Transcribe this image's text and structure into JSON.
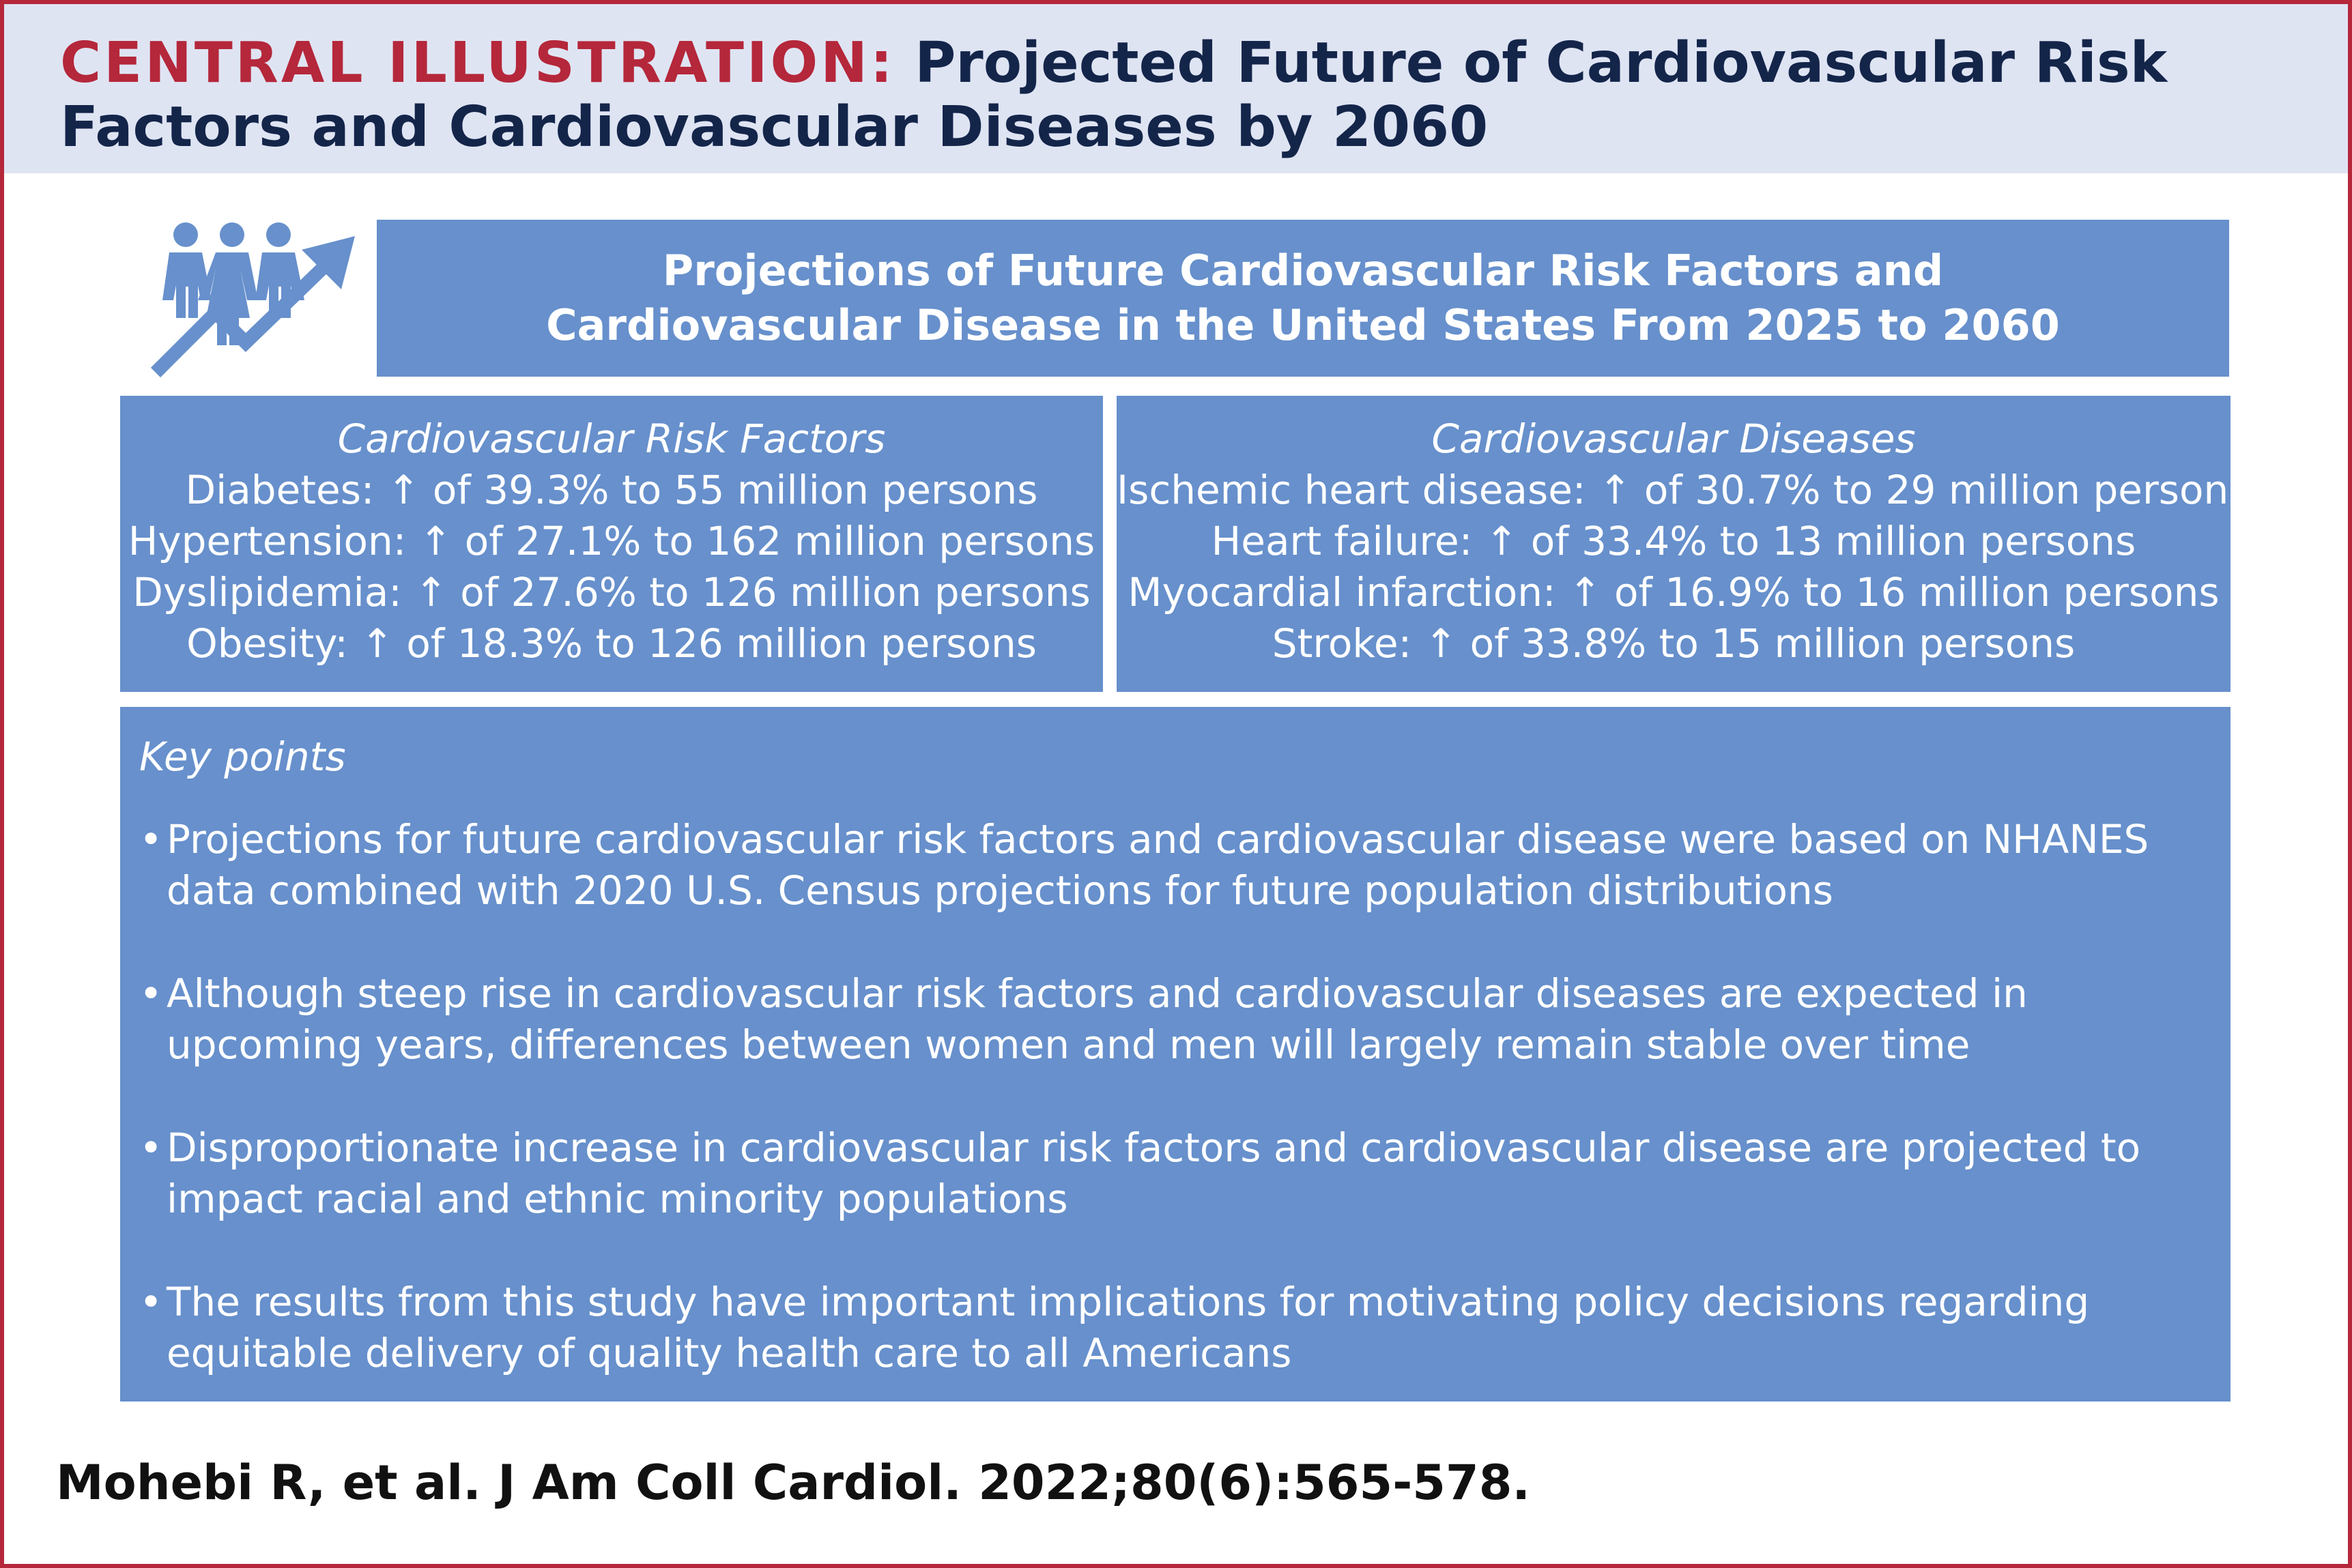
{
  "header": {
    "label": "CENTRAL ILLUSTRATION:",
    "title": " Projected Future of Cardiovascular Risk Factors and Cardiovascular Diseases by 2060"
  },
  "icon": {
    "name": "people-growth-icon",
    "color": "#6790cc"
  },
  "title_panel": {
    "line1": "Projections of Future Cardiovascular Risk Factors and",
    "line2": "Cardiovascular Disease in the United States From 2025 to 2060"
  },
  "risk_factors": {
    "heading": "Cardiovascular Risk Factors",
    "items": [
      "Diabetes: ↑ of 39.3% to 55 million persons",
      "Hypertension: ↑ of 27.1% to 162 million persons",
      "Dyslipidemia: ↑ of 27.6% to 126 million persons",
      "Obesity: ↑ of 18.3% to 126 million persons"
    ]
  },
  "diseases": {
    "heading": "Cardiovascular Diseases",
    "items": [
      "Ischemic heart disease: ↑ of 30.7% to 29 million persons",
      "Heart failure: ↑ of 33.4% to 13 million persons",
      "Myocardial infarction: ↑ of 16.9% to 16 million persons",
      "Stroke: ↑ of 33.8% to 15 million persons"
    ]
  },
  "key_points": {
    "heading": "Key points",
    "bullet": "•",
    "items": [
      "Projections for future cardiovascular risk factors and cardiovascular disease were based on NHANES data combined with 2020 U.S. Census projections for future population distributions",
      "Although steep rise in cardiovascular risk factors and cardiovascular diseases are expected in upcoming years, differences between women and men will largely remain stable over time",
      "Disproportionate increase in cardiovascular risk factors and cardiovascular disease are projected to impact racial and ethnic minority populations",
      "The results from this study have important implications for motivating policy decisions regarding equitable delivery of quality health care to all Americans"
    ]
  },
  "citation": "Mohebi R, et al. J Am Coll Cardiol. 2022;80(6):565-578.",
  "colors": {
    "accent": "#b5273a",
    "panel": "#6790cc",
    "header_bg": "#dfe4f3",
    "title_text": "#14254a"
  }
}
